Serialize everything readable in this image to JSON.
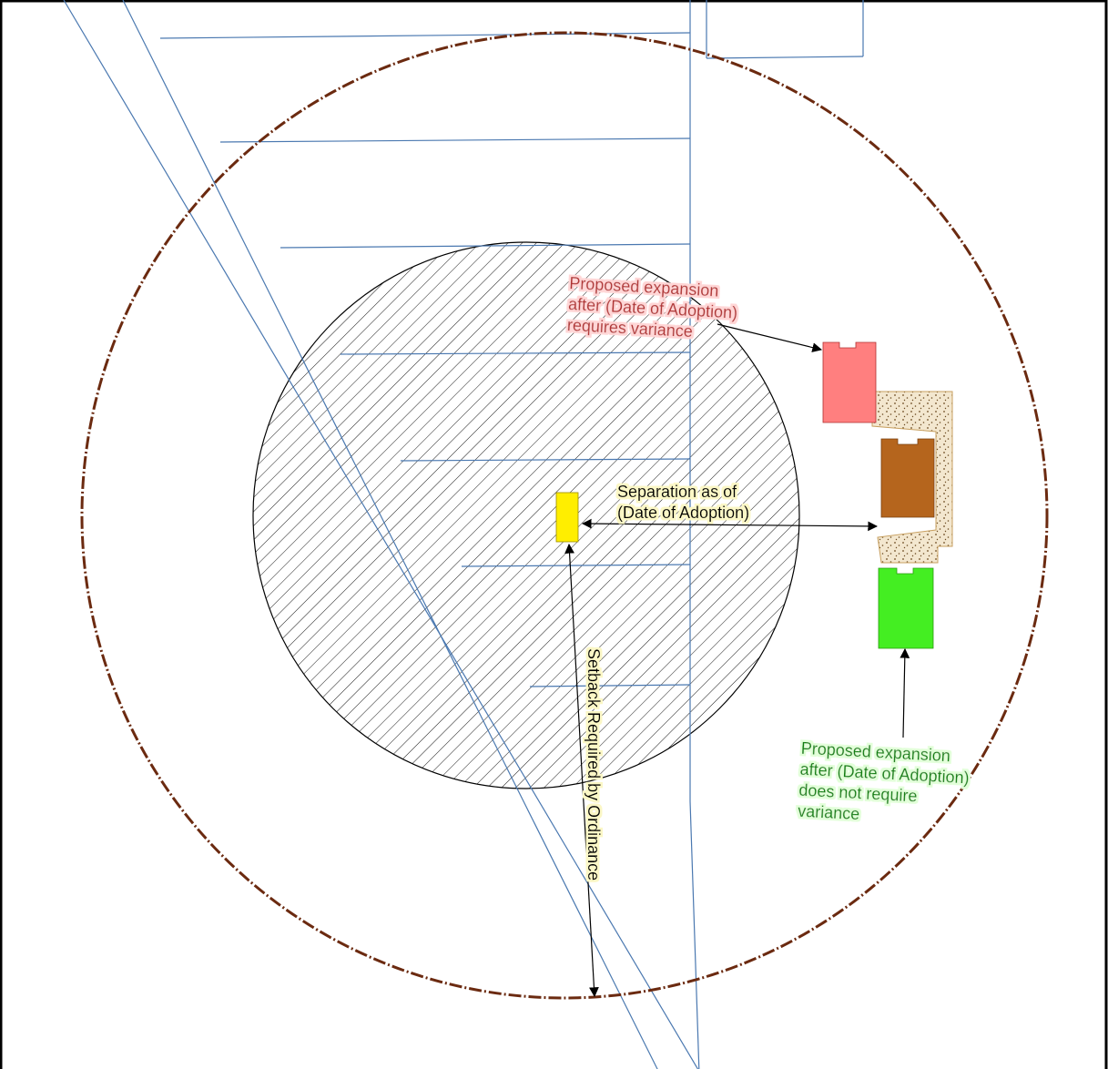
{
  "labels": {
    "red_line1": "Proposed expansion",
    "red_line2": "after (Date of Adoption)",
    "red_line3": "requires variance",
    "separation_line1": "Separation as of",
    "separation_line2": "(Date of Adoption)",
    "green_line1": "Proposed expansion",
    "green_line2": "after (Date of Adoption)",
    "green_line3": "does not require",
    "green_line4": "variance",
    "setback": "Setback Required by Ordinance"
  },
  "colors": {
    "frame": "#000000",
    "parcel_lines": "#4a78b0",
    "outer_circle": "#6b2a10",
    "hatch_circle": "#000000",
    "red_text": "#b03030",
    "red_halo": "#ffd6d6",
    "red_building": "#ff7f7f",
    "brown_building": "#b5651d",
    "sand_area": "#f0e4cc",
    "green_building": "#44ee22",
    "green_text": "#108010",
    "green_halo": "#e2ffd9",
    "yellow_building": "#ffee00",
    "note_halo": "#fbf7c6"
  }
}
